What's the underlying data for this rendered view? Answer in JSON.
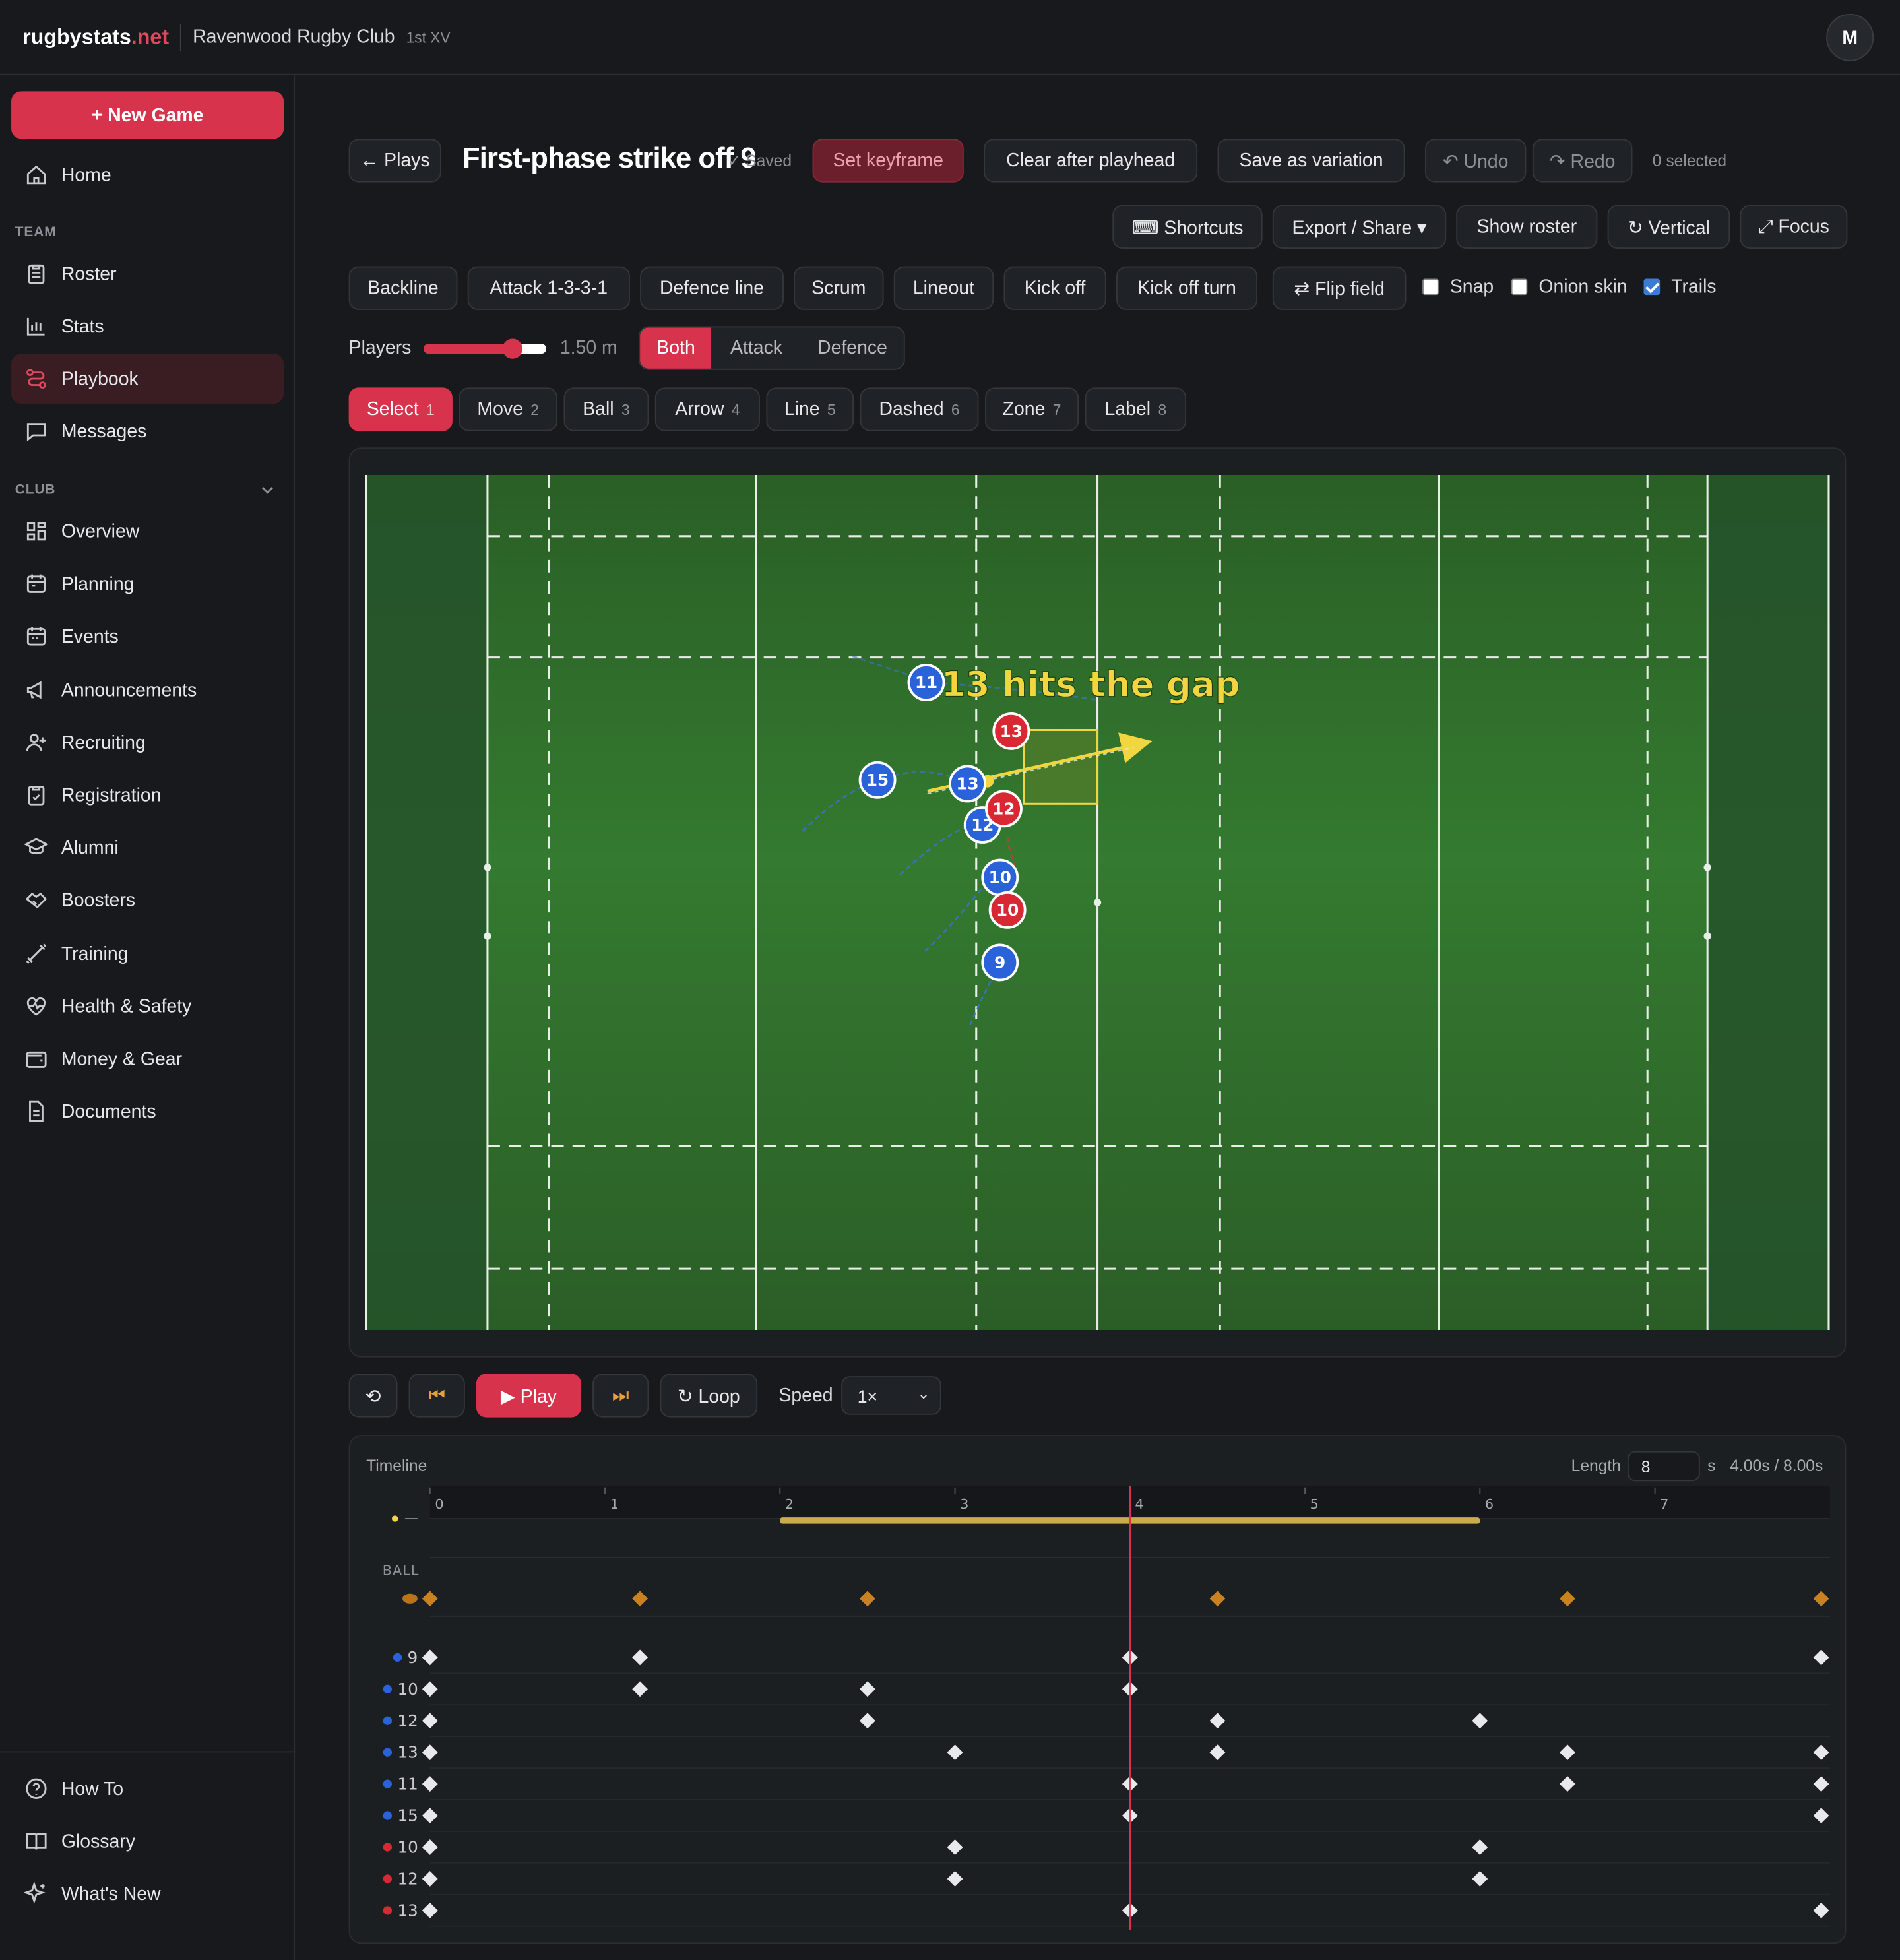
{
  "app": {
    "brand": "rugbystats",
    "brand_tld": ".net",
    "club": "Ravenwood Rugby Club",
    "team": "1st XV",
    "avatar": "M"
  },
  "sidebar": {
    "new_game": "+ New Game",
    "home": "Home",
    "team_section": "TEAM",
    "team_items": [
      "Roster",
      "Stats",
      "Playbook",
      "Messages"
    ],
    "club_section": "CLUB",
    "club_items": [
      "Overview",
      "Planning",
      "Events",
      "Announcements",
      "Recruiting",
      "Registration",
      "Alumni",
      "Boosters",
      "Training",
      "Health & Safety",
      "Money & Gear",
      "Documents"
    ],
    "footer_items": [
      "How To",
      "Glossary",
      "What's New"
    ]
  },
  "editor": {
    "back": "← Plays",
    "title": "First-phase strike off 9",
    "saved": "✓ Saved",
    "set_keyframe": "Set keyframe",
    "clear_after": "Clear after playhead",
    "save_variation": "Save as variation",
    "undo": "↶ Undo",
    "redo": "↷ Redo",
    "selected": "0 selected",
    "shortcuts": "⌨ Shortcuts",
    "export": "Export / Share ▾",
    "show_roster": "Show roster",
    "vertical": "↻ Vertical",
    "focus": "⤢ Focus",
    "presets": [
      "Backline",
      "Attack 1-3-3-1",
      "Defence line",
      "Scrum",
      "Lineout",
      "Kick off",
      "Kick off turn"
    ],
    "flip": "⇄ Flip field",
    "snap": "Snap",
    "onion": "Onion skin",
    "trails": "Trails",
    "trails_on": true,
    "players_label": "Players",
    "player_size": "1.50 m",
    "player_size_level": 0.72,
    "sides": [
      "Both",
      "Attack",
      "Defence"
    ],
    "side_selected": "Both",
    "tools": [
      {
        "label": "Select",
        "key": "1"
      },
      {
        "label": "Move",
        "key": "2"
      },
      {
        "label": "Ball",
        "key": "3"
      },
      {
        "label": "Arrow",
        "key": "4"
      },
      {
        "label": "Line",
        "key": "5"
      },
      {
        "label": "Dashed",
        "key": "6"
      },
      {
        "label": "Zone",
        "key": "7"
      },
      {
        "label": "Label",
        "key": "8"
      }
    ],
    "tool_selected": "Select"
  },
  "field": {
    "label": "13 hits the gap",
    "colors": {
      "grass": "#2f6a2a",
      "attack": "#2a62d9",
      "defence": "#d72833",
      "ball": "#b9731c",
      "highlight": "#f2d640"
    },
    "attack": [
      {
        "n": "11"
      },
      {
        "n": "15"
      },
      {
        "n": "13"
      },
      {
        "n": "12"
      },
      {
        "n": "10"
      },
      {
        "n": "9"
      }
    ],
    "defence": [
      {
        "n": "13"
      },
      {
        "n": "12"
      },
      {
        "n": "10"
      }
    ]
  },
  "playback": {
    "reset": "⟲",
    "prev": "⏮",
    "play": "▶ Play",
    "next": "⏭",
    "loop": "↻ Loop",
    "speed_label": "Speed",
    "speed": "1×"
  },
  "timeline": {
    "title": "Timeline",
    "length_label": "Length",
    "length": "8",
    "unit": "s",
    "readout": "4.00s / 8.00s",
    "ticks": [
      "0",
      "1",
      "2",
      "3",
      "4",
      "5",
      "6",
      "7"
    ],
    "playhead": 4.0,
    "duration": 8,
    "label_track": {
      "start": 2.0,
      "end": 6.0
    },
    "ball_label": "BALL",
    "ball_keys": [
      0,
      1.2,
      2.5,
      4.5,
      6.5,
      7.95
    ],
    "rows": [
      {
        "n": "9",
        "team": "attack",
        "keys": [
          0,
          1.2,
          4.0,
          7.95
        ]
      },
      {
        "n": "10",
        "team": "attack",
        "keys": [
          0,
          1.2,
          2.5,
          4.0
        ]
      },
      {
        "n": "12",
        "team": "attack",
        "keys": [
          0,
          2.5,
          4.5,
          6.0
        ]
      },
      {
        "n": "13",
        "team": "attack",
        "keys": [
          0,
          3.0,
          4.5,
          6.5,
          7.95
        ]
      },
      {
        "n": "11",
        "team": "attack",
        "keys": [
          0,
          4.0,
          6.5,
          7.95
        ]
      },
      {
        "n": "15",
        "team": "attack",
        "keys": [
          0,
          4.0,
          7.95
        ]
      },
      {
        "n": "10",
        "team": "defence",
        "keys": [
          0,
          3.0,
          6.0
        ]
      },
      {
        "n": "12",
        "team": "defence",
        "keys": [
          0,
          3.0,
          6.0
        ]
      },
      {
        "n": "13",
        "team": "defence",
        "keys": [
          0,
          4.0,
          7.95
        ]
      }
    ]
  }
}
